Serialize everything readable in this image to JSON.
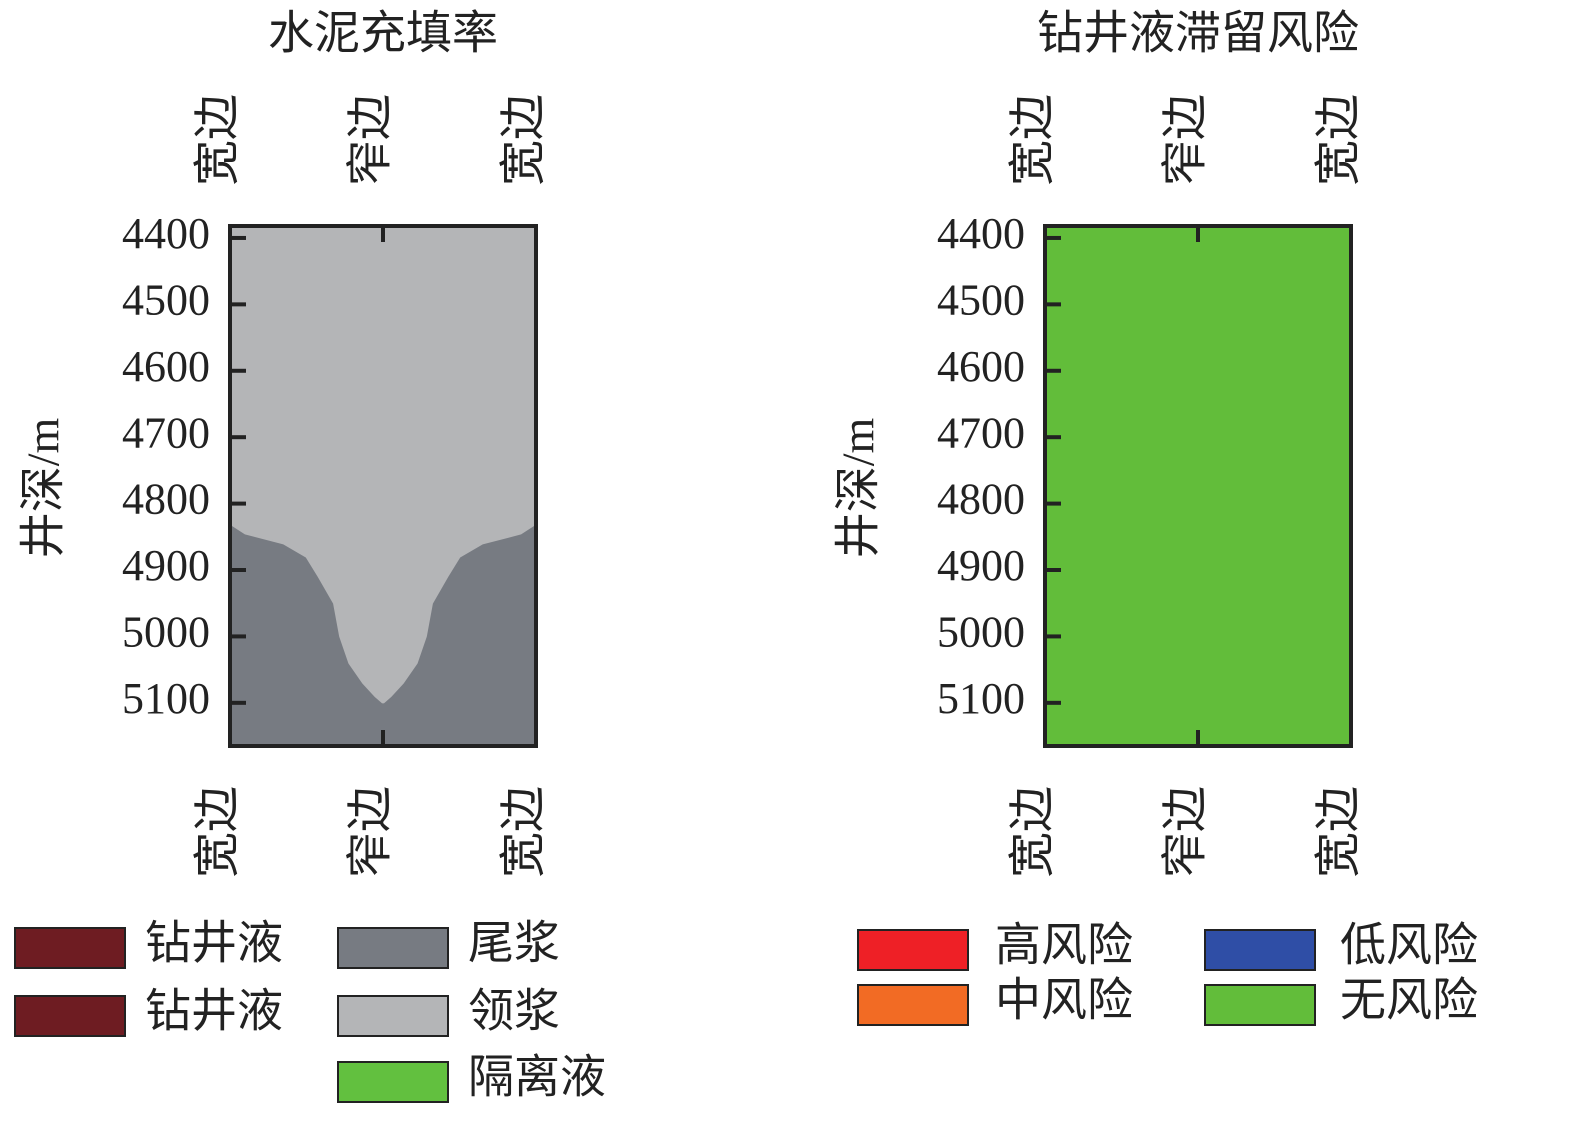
{
  "chart_data": [
    {
      "type": "cement-fill",
      "title": "水泥充填率",
      "ylabel": "井深/m",
      "ylim": [
        4382,
        5165
      ],
      "yticks": [
        4400,
        4500,
        4600,
        4700,
        4800,
        4900,
        5000,
        5100
      ],
      "xlim": [
        -1,
        1
      ],
      "xticks": [
        {
          "value": -1,
          "label": "宽边"
        },
        {
          "value": 0,
          "label": "窄边"
        },
        {
          "value": 1,
          "label": "宽边"
        }
      ],
      "series": [
        {
          "name": "钻井液",
          "color": "#6e1c22"
        },
        {
          "name": "钻井液",
          "color": "#6e1c22"
        },
        {
          "name": "尾浆",
          "color": "#777b82"
        },
        {
          "name": "领浆",
          "color": "#b4b5b7"
        },
        {
          "name": "隔离液",
          "color": "#62c03f"
        }
      ],
      "base_series": 2,
      "upper_series": 3,
      "lead_boundary": {
        "depth": [
          4830,
          4845,
          4860,
          4880,
          4910,
          4950,
          5000,
          5040,
          5070,
          5090,
          5100
        ],
        "half_width": [
          1,
          0.9,
          0.65,
          0.5,
          0.42,
          0.32,
          0.28,
          0.22,
          0.13,
          0.05,
          0
        ]
      }
    },
    {
      "type": "risk",
      "title": "钻井液滞留风险",
      "ylabel": "井深/m",
      "ylim": [
        4382,
        5165
      ],
      "yticks": [
        4400,
        4500,
        4600,
        4700,
        4800,
        4900,
        5000,
        5100
      ],
      "xlim": [
        -1,
        1
      ],
      "xticks": [
        {
          "value": -1,
          "label": "宽边"
        },
        {
          "value": 0,
          "label": "窄边"
        },
        {
          "value": 1,
          "label": "宽边"
        }
      ],
      "series": [
        {
          "name": "高风险",
          "color": "#ee2026"
        },
        {
          "name": "中风险",
          "color": "#f26b24"
        },
        {
          "name": "低风险",
          "color": "#2f4ea6"
        },
        {
          "name": "无风险",
          "color": "#62bd3a"
        }
      ],
      "base_series": 3
    }
  ]
}
